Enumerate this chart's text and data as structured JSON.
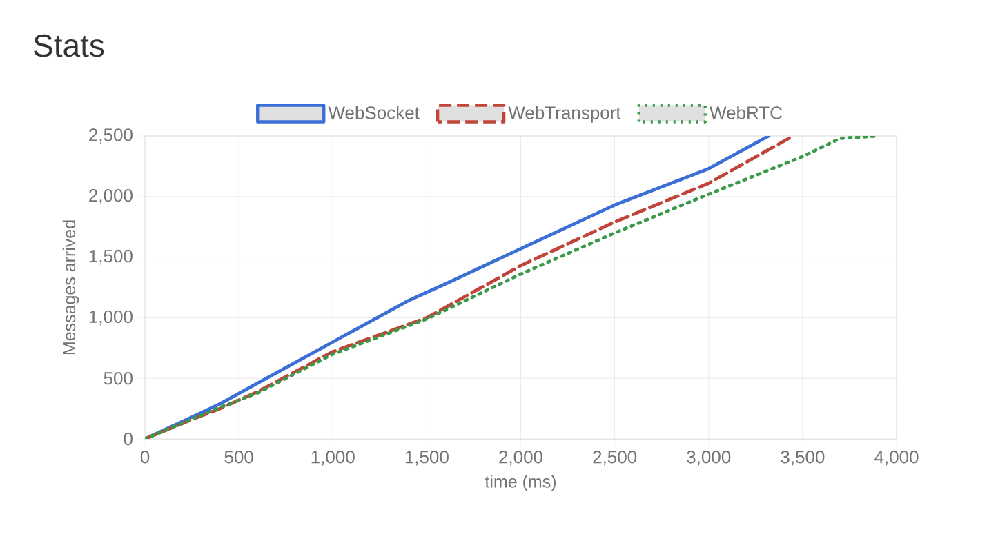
{
  "chart_data": {
    "type": "line",
    "title": "Stats",
    "xlabel": "time (ms)",
    "ylabel": "Messages arrived",
    "xlim": [
      0,
      4000
    ],
    "ylim": [
      0,
      2500
    ],
    "xticks": [
      0,
      500,
      {
        "value": 1000,
        "label": "1,000"
      },
      {
        "value": 1500,
        "label": "1,500"
      },
      {
        "value": 2000,
        "label": "2,000"
      },
      {
        "value": 2500,
        "label": "2,500"
      },
      {
        "value": 3000,
        "label": "3,000"
      },
      {
        "value": 3500,
        "label": "3,500"
      },
      {
        "value": 4000,
        "label": "4,000"
      }
    ],
    "yticks": [
      0,
      500,
      {
        "value": 1000,
        "label": "1,000"
      },
      {
        "value": 1500,
        "label": "1,500"
      },
      {
        "value": 2000,
        "label": "2,000"
      },
      {
        "value": 2500,
        "label": "2,500"
      }
    ],
    "grid": true,
    "legend": "top",
    "marker": "none",
    "series": [
      {
        "name": "WebSocket",
        "color": "#3b6fd6",
        "line_style": "solid",
        "x": [
          0,
          250,
          400,
          600,
          1000,
          1400,
          1600,
          2000,
          2500,
          3000,
          3320
        ],
        "values": [
          0,
          180,
          290,
          460,
          800,
          1140,
          1280,
          1570,
          1930,
          2230,
          2500
        ]
      },
      {
        "name": "WebTransport",
        "color": "#c0443a",
        "line_style": "dashed",
        "x": [
          0,
          250,
          400,
          600,
          1000,
          1500,
          2000,
          2500,
          3000,
          3450
        ],
        "values": [
          0,
          160,
          250,
          390,
          720,
          1000,
          1430,
          1790,
          2110,
          2500
        ]
      },
      {
        "name": "WebRTC",
        "color": "#3a9a4a",
        "line_style": "dotted",
        "x": [
          0,
          400,
          600,
          1000,
          1500,
          2000,
          2500,
          3000,
          3500,
          3700,
          3900
        ],
        "values": [
          0,
          260,
          380,
          700,
          990,
          1360,
          1700,
          2020,
          2330,
          2480,
          2500
        ]
      }
    ]
  }
}
